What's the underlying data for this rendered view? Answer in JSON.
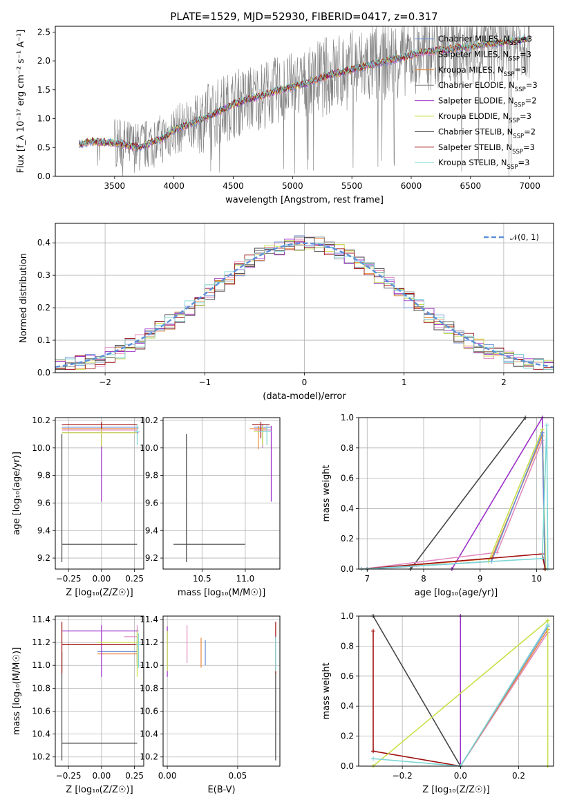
{
  "title": "PLATE=1529, MJD=52930, FIBERID=0417, z=0.317",
  "colors": {
    "chabrier_miles": "#6b8fd6",
    "salpeter_miles": "#e08ac0",
    "kroupa_miles": "#e8873a",
    "chabrier_elodie": "#7f7f7f",
    "salpeter_elodie": "#9b30c8",
    "kroupa_elodie": "#c9e04a",
    "chabrier_stelib": "#454545",
    "salpeter_stelib": "#a01010",
    "kroupa_stelib": "#7ed6d6",
    "normal": "#5b8fd8",
    "data": "#7f7f7f"
  },
  "chart_data": [
    {
      "id": "spectrum",
      "type": "line",
      "title": "PLATE=1529, MJD=52930, FIBERID=0417, z=0.317",
      "xlabel": "wavelength [Angstrom, rest frame]",
      "ylabel": "Flux [f_λ 10⁻¹⁷ erg cm⁻² s⁻¹ A⁻¹]",
      "xlim": [
        3000,
        7200
      ],
      "ylim": [
        0,
        2.6
      ],
      "xticks": [
        "3500",
        "4000",
        "4500",
        "5000",
        "5500",
        "6000",
        "6500",
        "7000"
      ],
      "yticks": [
        "0.0",
        "0.5",
        "1.0",
        "1.5",
        "2.0",
        "2.5"
      ],
      "legend": [
        {
          "text": "Chabrier MILES, N",
          "sub": "SSP",
          "val": "=3",
          "color": "#6b8fd6"
        },
        {
          "text": "Salpeter MILES, N",
          "sub": "SSP",
          "val": "=3",
          "color": "#e08ac0"
        },
        {
          "text": "Kroupa MILES, N",
          "sub": "SSP",
          "val": "=3",
          "color": "#e8873a"
        },
        {
          "text": "Chabrier ELODIE, N",
          "sub": "SSP",
          "val": "=3",
          "color": "#7f7f7f"
        },
        {
          "text": "Salpeter ELODIE, N",
          "sub": "SSP",
          "val": "=2",
          "color": "#9b30c8"
        },
        {
          "text": "Kroupa ELODIE, N",
          "sub": "SSP",
          "val": "=3",
          "color": "#c9e04a"
        },
        {
          "text": "Chabrier STELIB, N",
          "sub": "SSP",
          "val": "=2",
          "color": "#454545"
        },
        {
          "text": "Salpeter STELIB, N",
          "sub": "SSP",
          "val": "=3",
          "color": "#a01010"
        },
        {
          "text": "Kroupa STELIB, N",
          "sub": "SSP",
          "val": "=3",
          "color": "#7ed6d6"
        }
      ],
      "legend_loc": "right",
      "continuum": [
        [
          3200,
          0.55
        ],
        [
          3300,
          0.6
        ],
        [
          3500,
          0.58
        ],
        [
          3700,
          0.5
        ],
        [
          3900,
          0.65
        ],
        [
          4000,
          0.8
        ],
        [
          4300,
          1.05
        ],
        [
          4500,
          1.25
        ],
        [
          4700,
          1.38
        ],
        [
          4900,
          1.5
        ],
        [
          5100,
          1.6
        ],
        [
          5300,
          1.75
        ],
        [
          5500,
          1.85
        ],
        [
          5700,
          1.95
        ],
        [
          5900,
          2.05
        ],
        [
          6100,
          2.15
        ],
        [
          6300,
          2.2
        ],
        [
          6500,
          2.25
        ],
        [
          6700,
          2.3
        ],
        [
          6900,
          2.35
        ],
        [
          7000,
          2.38
        ]
      ]
    },
    {
      "id": "residuals",
      "type": "histogram",
      "xlabel": "(data-model)/error",
      "ylabel": "Normed distribution",
      "xlim": [
        -2.5,
        2.5
      ],
      "ylim": [
        0,
        0.46
      ],
      "xticks": [
        "−2",
        "−1",
        "0",
        "1",
        "2"
      ],
      "yticks": [
        "0.0",
        "0.1",
        "0.2",
        "0.3",
        "0.4"
      ],
      "legend": "𝒩(0, 1)",
      "grid": true
    },
    {
      "id": "age_vs_Z",
      "type": "errorbar",
      "xlabel": "Z [log₁₀(Z/Z☉)]",
      "ylabel": "age  [log₁₀(age/yr)]",
      "xlim": [
        -0.35,
        0.32
      ],
      "ylim": [
        9.12,
        10.22
      ],
      "xticks": [
        "−0.25",
        "0.00",
        "0.25"
      ],
      "yticks": [
        "9.2",
        "9.4",
        "9.6",
        "9.8",
        "10.0",
        "10.2"
      ],
      "points": [
        {
          "x": 0.0,
          "y": 10.15,
          "xerr": [
            0.3,
            0.28
          ],
          "yerr": [
            0.04,
            0.02
          ],
          "color": "#6b8fd6"
        },
        {
          "x": 0.0,
          "y": 10.13,
          "xerr": [
            0.3,
            0.27
          ],
          "yerr": [
            0.03,
            0.03
          ],
          "color": "#e08ac0"
        },
        {
          "x": 0.0,
          "y": 10.14,
          "xerr": [
            0.3,
            0.28
          ],
          "yerr": [
            0.14,
            0.02
          ],
          "color": "#e8873a"
        },
        {
          "x": 0.0,
          "y": 10.11,
          "xerr": [
            0.3,
            0.28
          ],
          "yerr": [
            0.5,
            0.05
          ],
          "color": "#9b30c8"
        },
        {
          "x": 0.0,
          "y": 10.11,
          "xerr": [
            0.3,
            0.27
          ],
          "yerr": [
            0.1,
            0.05
          ],
          "color": "#c9e04a"
        },
        {
          "x": -0.3,
          "y": 9.3,
          "xerr": [
            0.0,
            0.57
          ],
          "yerr": [
            0.13,
            0.8
          ],
          "color": "#454545"
        },
        {
          "x": 0.0,
          "y": 10.17,
          "xerr": [
            0.3,
            0.27
          ],
          "yerr": [
            0.03,
            0.02
          ],
          "color": "#a01010"
        },
        {
          "x": 0.27,
          "y": 10.12,
          "xerr": [
            0.02,
            0.02
          ],
          "yerr": [
            0.1,
            0.05
          ],
          "color": "#7ed6d6"
        }
      ]
    },
    {
      "id": "age_vs_mass",
      "type": "errorbar",
      "xlabel": "mass [log₁₀(M/M☉)]",
      "ylabel": "",
      "xlim": [
        10.05,
        11.4
      ],
      "ylim": [
        9.12,
        10.22
      ],
      "xticks": [
        "10.5",
        "11.0"
      ],
      "yticks": [
        "9.2",
        "9.4",
        "9.6",
        "9.8",
        "10.0",
        "10.2"
      ],
      "points": [
        {
          "x": 11.2,
          "y": 10.15,
          "xerr": [
            0.1,
            0.1
          ],
          "yerr": [
            0.15,
            0.02
          ],
          "color": "#6b8fd6"
        },
        {
          "x": 11.2,
          "y": 10.13,
          "xerr": [
            0.1,
            0.1
          ],
          "yerr": [
            0.13,
            0.03
          ],
          "color": "#e08ac0"
        },
        {
          "x": 11.15,
          "y": 10.14,
          "xerr": [
            0.1,
            0.1
          ],
          "yerr": [
            0.15,
            0.02
          ],
          "color": "#e8873a"
        },
        {
          "x": 11.3,
          "y": 10.11,
          "xerr": [
            0.0,
            0.0
          ],
          "yerr": [
            0.5,
            0.05
          ],
          "color": "#9b30c8"
        },
        {
          "x": 11.2,
          "y": 10.12,
          "xerr": [
            0.1,
            0.05
          ],
          "yerr": [
            0.1,
            0.04
          ],
          "color": "#c9e04a"
        },
        {
          "x": 10.32,
          "y": 9.3,
          "xerr": [
            0.15,
            0.68
          ],
          "yerr": [
            0.13,
            0.8
          ],
          "color": "#454545"
        },
        {
          "x": 11.18,
          "y": 10.17,
          "xerr": [
            0.1,
            0.1
          ],
          "yerr": [
            0.1,
            0.02
          ],
          "color": "#a01010"
        },
        {
          "x": 11.25,
          "y": 10.12,
          "xerr": [
            0.1,
            0.05
          ],
          "yerr": [
            0.1,
            0.05
          ],
          "color": "#7ed6d6"
        }
      ]
    },
    {
      "id": "massweight_vs_age",
      "type": "line",
      "xlabel": "age  [log₁₀(age/yr)]",
      "ylabel": "mass weight",
      "xlim": [
        6.85,
        10.3
      ],
      "ylim": [
        0,
        1.0
      ],
      "xticks": [
        "7",
        "8",
        "9",
        "10"
      ],
      "yticks": [
        "0.0",
        "0.2",
        "0.4",
        "0.6",
        "0.8",
        "1.0"
      ],
      "series": [
        {
          "color": "#454545",
          "points": [
            [
              7.77,
              0.0
            ],
            [
              9.8,
              1.0
            ]
          ]
        },
        {
          "color": "#9b30c8",
          "points": [
            [
              8.5,
              0.0
            ],
            [
              10.1,
              1.0
            ],
            [
              10.15,
              0.0
            ]
          ]
        },
        {
          "color": "#e08ac0",
          "points": [
            [
              6.9,
              0.0
            ],
            [
              9.3,
              0.11
            ],
            [
              10.1,
              0.85
            ],
            [
              10.15,
              0.0
            ]
          ]
        },
        {
          "color": "#e8873a",
          "points": [
            [
              7.0,
              0.0
            ],
            [
              9.2,
              0.07
            ],
            [
              10.1,
              0.88
            ],
            [
              10.15,
              0.0
            ]
          ]
        },
        {
          "color": "#c9e04a",
          "points": [
            [
              7.0,
              0.0
            ],
            [
              9.15,
              0.05
            ],
            [
              10.1,
              0.92
            ],
            [
              10.16,
              0.0
            ]
          ]
        },
        {
          "color": "#6b8fd6",
          "points": [
            [
              7.0,
              0.0
            ],
            [
              9.2,
              0.05
            ],
            [
              10.1,
              0.9
            ],
            [
              10.15,
              0.0
            ]
          ]
        },
        {
          "color": "#a01010",
          "points": [
            [
              6.9,
              0.0
            ],
            [
              10.1,
              0.1
            ],
            [
              10.15,
              0.0
            ]
          ]
        },
        {
          "color": "#7ed6d6",
          "points": [
            [
              6.9,
              0.0
            ],
            [
              10.1,
              0.07
            ],
            [
              10.18,
              0.95
            ],
            [
              10.2,
              0.0
            ]
          ]
        }
      ]
    },
    {
      "id": "mass_vs_Z",
      "type": "errorbar",
      "xlabel": "Z [log₁₀(Z/Z☉)]",
      "ylabel": "mass [log₁₀(M/M☉)]",
      "xlim": [
        -0.35,
        0.32
      ],
      "ylim": [
        10.12,
        11.43
      ],
      "xticks": [
        "−0.25",
        "0.00",
        "0.25"
      ],
      "yticks": [
        "10.2",
        "10.4",
        "10.6",
        "10.8",
        "11.0",
        "11.2",
        "11.4"
      ],
      "points": [
        {
          "x": 0.27,
          "y": 11.12,
          "xerr": [
            0.3,
            0.0
          ],
          "yerr": [
            0.1,
            0.1
          ],
          "color": "#6b8fd6"
        },
        {
          "x": 0.27,
          "y": 11.25,
          "xerr": [
            0.1,
            0.0
          ],
          "yerr": [
            0.1,
            0.1
          ],
          "color": "#e08ac0"
        },
        {
          "x": 0.27,
          "y": 11.1,
          "xerr": [
            0.3,
            0.0
          ],
          "yerr": [
            0.1,
            0.1
          ],
          "color": "#e8873a"
        },
        {
          "x": 0.0,
          "y": 11.3,
          "xerr": [
            0.3,
            0.28
          ],
          "yerr": [
            0.4,
            0.05
          ],
          "color": "#9b30c8"
        },
        {
          "x": 0.27,
          "y": 11.2,
          "xerr": [
            0.3,
            0.0
          ],
          "yerr": [
            0.3,
            0.1
          ],
          "color": "#c9e04a"
        },
        {
          "x": -0.3,
          "y": 10.32,
          "xerr": [
            0.0,
            0.57
          ],
          "yerr": [
            0.15,
            0.8
          ],
          "color": "#454545"
        },
        {
          "x": -0.3,
          "y": 11.18,
          "xerr": [
            0.0,
            0.57
          ],
          "yerr": [
            0.25,
            0.2
          ],
          "color": "#a01010"
        },
        {
          "x": 0.28,
          "y": 11.18,
          "xerr": [
            0.02,
            0.02
          ],
          "yerr": [
            0.2,
            0.1
          ],
          "color": "#7ed6d6"
        }
      ]
    },
    {
      "id": "mass_vs_EBV",
      "type": "errorbar",
      "xlabel": "E(B-V)",
      "ylabel": "",
      "xlim": [
        -0.003,
        0.08
      ],
      "ylim": [
        10.12,
        11.43
      ],
      "xticks": [
        "0.00",
        "0.05"
      ],
      "yticks": [
        "10.2",
        "10.4",
        "10.6",
        "10.8",
        "11.0",
        "11.2",
        "11.4"
      ],
      "points": [
        {
          "x": 0.027,
          "y": 11.12,
          "yerr": [
            0.12,
            0.1
          ],
          "color": "#6b8fd6"
        },
        {
          "x": 0.014,
          "y": 11.15,
          "yerr": [
            0.13,
            0.2
          ],
          "color": "#e08ac0"
        },
        {
          "x": 0.024,
          "y": 11.1,
          "yerr": [
            0.12,
            0.14
          ],
          "color": "#e8873a"
        },
        {
          "x": 0.0,
          "y": 11.2,
          "yerr": [
            0.3,
            0.14
          ],
          "color": "#9b30c8"
        },
        {
          "x": 0.0,
          "y": 11.15,
          "yerr": [
            0.2,
            0.15
          ],
          "color": "#c9e04a"
        },
        {
          "x": 0.077,
          "y": 10.32,
          "yerr": [
            0.15,
            0.62
          ],
          "color": "#454545"
        },
        {
          "x": 0.077,
          "y": 11.18,
          "yerr": [
            0.25,
            0.2
          ],
          "color": "#a01010"
        },
        {
          "x": 0.077,
          "y": 11.1,
          "yerr": [
            0.15,
            0.15
          ],
          "color": "#7ed6d6"
        }
      ]
    },
    {
      "id": "massweight_vs_Z",
      "type": "line",
      "xlabel": "Z [log₁₀(Z/Z☉)]",
      "ylabel": "mass weight",
      "xlim": [
        -0.35,
        0.32
      ],
      "ylim": [
        0,
        1.0
      ],
      "xticks": [
        "−0.2",
        "0.0",
        "0.2"
      ],
      "yticks": [
        "0.0",
        "0.2",
        "0.4",
        "0.6",
        "0.8",
        "1.0"
      ],
      "series": [
        {
          "color": "#454545",
          "points": [
            [
              -0.3,
              1.0
            ],
            [
              0.0,
              0.0
            ]
          ]
        },
        {
          "color": "#9b30c8",
          "points": [
            [
              0.0,
              1.0
            ],
            [
              0.0,
              0.0
            ]
          ]
        },
        {
          "color": "#a01010",
          "points": [
            [
              -0.3,
              0.9
            ],
            [
              -0.3,
              0.1
            ],
            [
              0.0,
              0.0
            ]
          ]
        },
        {
          "color": "#e08ac0",
          "points": [
            [
              0.0,
              0.0
            ],
            [
              0.3,
              0.89
            ]
          ]
        },
        {
          "color": "#e8873a",
          "points": [
            [
              0.0,
              0.0
            ],
            [
              0.3,
              0.91
            ]
          ]
        },
        {
          "color": "#6b8fd6",
          "points": [
            [
              0.0,
              0.0
            ],
            [
              0.3,
              0.93
            ]
          ]
        },
        {
          "color": "#c9e04a",
          "points": [
            [
              -0.3,
              0.0
            ],
            [
              0.3,
              0.97
            ],
            [
              0.3,
              0.0
            ]
          ]
        },
        {
          "color": "#7ed6d6",
          "points": [
            [
              -0.3,
              0.05
            ],
            [
              0.0,
              0.0
            ],
            [
              0.3,
              0.94
            ]
          ]
        }
      ]
    }
  ]
}
